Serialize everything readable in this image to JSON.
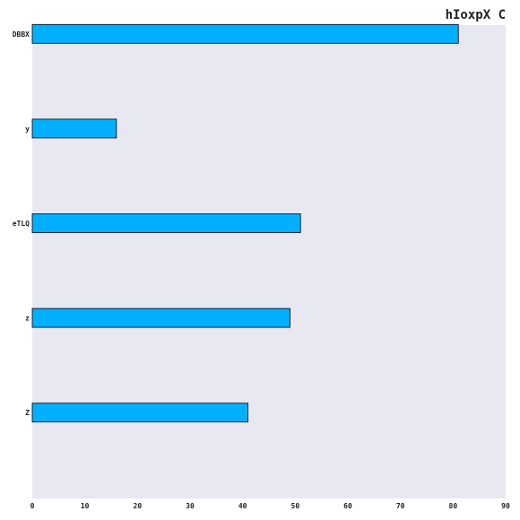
{
  "chart_data": {
    "type": "bar",
    "orientation": "horizontal",
    "title": "hIoxpX  C",
    "xlabel": "",
    "ylabel": "",
    "categories": [
      "DBBX",
      "y",
      "eTLQ",
      "z",
      "Z"
    ],
    "values": [
      81,
      16,
      51,
      49,
      41
    ],
    "xlim": [
      0,
      90
    ],
    "xticks": [
      0,
      10,
      20,
      30,
      40,
      50,
      60,
      70,
      80,
      90
    ],
    "grid": false,
    "legend": "none",
    "colors": {
      "bar_fill": "#00b0ff",
      "bar_edge": "#000000",
      "plot_bg": "#e8e8f2",
      "text": "#222222"
    }
  }
}
